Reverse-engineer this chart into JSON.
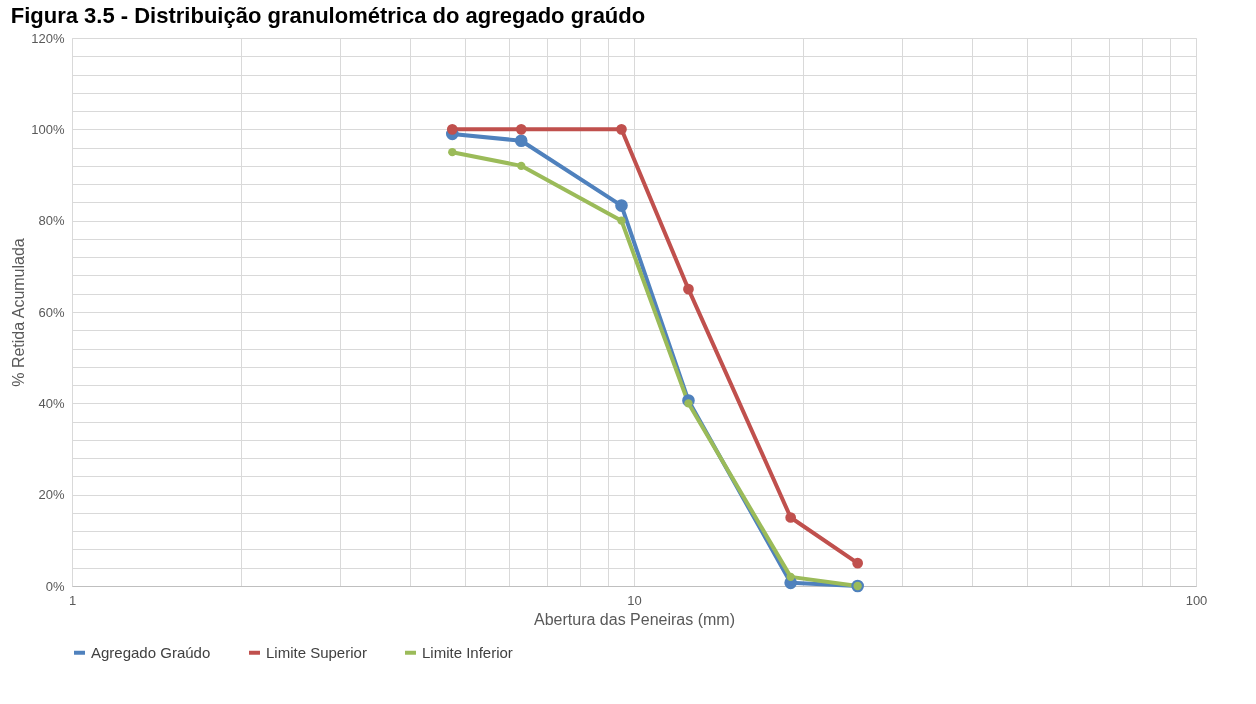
{
  "chart_data": {
    "type": "line",
    "title": "Figura 3.5 - Distribuição granulométrica do agregado graúdo",
    "xlabel": "Abertura das Peneiras (mm)",
    "ylabel": "% Retida Acumulada",
    "x": [
      4.75,
      6.3,
      9.5,
      12.5,
      19,
      25
    ],
    "series": [
      {
        "name": "Agregado Graúdo",
        "color": "#4f81bd",
        "values": [
          99,
          97.5,
          83.3,
          40.6,
          0.7,
          0
        ]
      },
      {
        "name": "Limite Superior",
        "color": "#c0504d",
        "values": [
          100,
          100,
          100,
          65,
          15,
          5
        ]
      },
      {
        "name": "Limite Inferior",
        "color": "#9bbb59",
        "values": [
          95,
          92,
          80,
          40,
          2,
          0
        ]
      }
    ],
    "log": "x",
    "xlim": [
      1,
      100
    ],
    "xticks": [
      1,
      {
        "value": 2,
        "label": null
      },
      {
        "value": 3,
        "label": null
      },
      {
        "value": 4,
        "label": null
      },
      {
        "value": 5,
        "label": null
      },
      {
        "value": 6,
        "label": null
      },
      {
        "value": 7,
        "label": null
      },
      {
        "value": 8,
        "label": null
      },
      {
        "value": 9,
        "label": null
      },
      10,
      {
        "value": 20,
        "label": null
      },
      {
        "value": 30,
        "label": null
      },
      {
        "value": 40,
        "label": null
      },
      {
        "value": 50,
        "label": null
      },
      {
        "value": 60,
        "label": null
      },
      {
        "value": 70,
        "label": null
      },
      {
        "value": 80,
        "label": null
      },
      {
        "value": 90,
        "label": null
      },
      100
    ],
    "ylim": [
      0,
      120
    ],
    "yticks": [
      {
        "value": 0,
        "label": "0%"
      },
      {
        "value": 4,
        "label": null
      },
      {
        "value": 8,
        "label": null
      },
      {
        "value": 12,
        "label": null
      },
      {
        "value": 16,
        "label": null
      },
      {
        "value": 20,
        "label": "20%"
      },
      {
        "value": 24,
        "label": null
      },
      {
        "value": 28,
        "label": null
      },
      {
        "value": 32,
        "label": null
      },
      {
        "value": 36,
        "label": null
      },
      {
        "value": 40,
        "label": "40%"
      },
      {
        "value": 44,
        "label": null
      },
      {
        "value": 48,
        "label": null
      },
      {
        "value": 52,
        "label": null
      },
      {
        "value": 56,
        "label": null
      },
      {
        "value": 60,
        "label": "60%"
      },
      {
        "value": 64,
        "label": null
      },
      {
        "value": 68,
        "label": null
      },
      {
        "value": 72,
        "label": null
      },
      {
        "value": 76,
        "label": null
      },
      {
        "value": 80,
        "label": "80%"
      },
      {
        "value": 84,
        "label": null
      },
      {
        "value": 88,
        "label": null
      },
      {
        "value": 92,
        "label": null
      },
      {
        "value": 96,
        "label": null
      },
      {
        "value": 100,
        "label": "100%"
      },
      {
        "value": 104,
        "label": null
      },
      {
        "value": 108,
        "label": null
      },
      {
        "value": 112,
        "label": null
      },
      {
        "value": 116,
        "label": null
      },
      {
        "value": 120,
        "label": "120%"
      }
    ],
    "grid": true,
    "legend": "bottom",
    "marker": "circle",
    "line_style": "solid"
  }
}
